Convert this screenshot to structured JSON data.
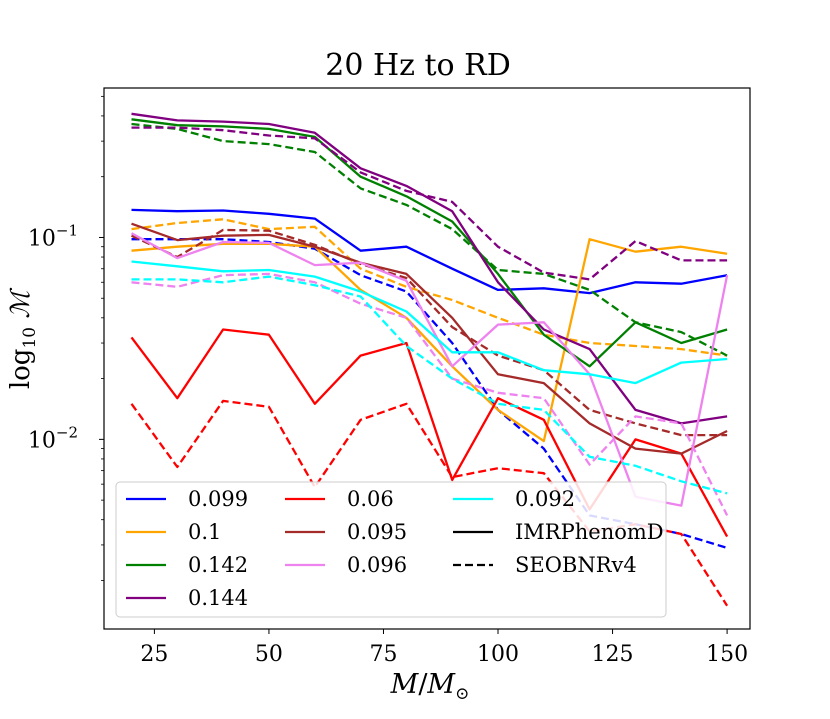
{
  "chart_data": {
    "type": "line",
    "title": "20 Hz to RD",
    "xlabel": "M/M_sun",
    "ylabel": "log10 M",
    "x": [
      20,
      30,
      40,
      50,
      60,
      70,
      80,
      90,
      100,
      110,
      120,
      130,
      140,
      150
    ],
    "xlim": [
      14,
      155
    ],
    "ylim": [
      0.00115,
      0.55
    ],
    "yscale": "log",
    "xticks": [
      25,
      50,
      75,
      100,
      125,
      150
    ],
    "xtick_labels": [
      "25",
      "50",
      "75",
      "100",
      "125",
      "150"
    ],
    "yticks": [
      0.01,
      0.1
    ],
    "ytick_labels": {
      "minus2": {
        "base": "10",
        "exp": "−2"
      },
      "minus1": {
        "base": "10",
        "exp": "−1"
      }
    },
    "legend": {
      "location": "lower-left",
      "columns": 3
    },
    "series": [
      {
        "name": "0.099",
        "color": "#0000ff",
        "style": "solid",
        "values": [
          0.137,
          0.135,
          0.136,
          0.131,
          0.124,
          0.086,
          0.09,
          0.07,
          0.055,
          0.056,
          0.053,
          0.06,
          0.059,
          0.065
        ]
      },
      {
        "name": "0.099",
        "color": "#0000ff",
        "style": "dashed",
        "values": [
          0.098,
          0.098,
          0.098,
          0.095,
          0.088,
          0.065,
          0.054,
          0.03,
          0.014,
          0.009,
          0.0042,
          0.0038,
          0.0034,
          0.0029
        ]
      },
      {
        "name": "0.1",
        "color": "#ffa500",
        "style": "solid",
        "values": [
          0.086,
          0.09,
          0.093,
          0.093,
          0.09,
          0.055,
          0.04,
          0.023,
          0.014,
          0.0098,
          0.098,
          0.085,
          0.09,
          0.083
        ]
      },
      {
        "name": "0.1",
        "color": "#ffa500",
        "style": "dashed",
        "values": [
          0.11,
          0.118,
          0.123,
          0.11,
          0.113,
          0.07,
          0.057,
          0.049,
          0.04,
          0.033,
          0.03,
          0.029,
          0.028,
          0.026
        ]
      },
      {
        "name": "0.142",
        "color": "#008000",
        "style": "solid",
        "values": [
          0.385,
          0.36,
          0.355,
          0.345,
          0.315,
          0.2,
          0.16,
          0.12,
          0.066,
          0.033,
          0.023,
          0.038,
          0.03,
          0.035
        ]
      },
      {
        "name": "0.142",
        "color": "#008000",
        "style": "dashed",
        "values": [
          0.365,
          0.345,
          0.3,
          0.29,
          0.265,
          0.175,
          0.145,
          0.11,
          0.069,
          0.066,
          0.055,
          0.038,
          0.034,
          0.026
        ]
      },
      {
        "name": "0.144",
        "color": "#800080",
        "style": "solid",
        "values": [
          0.41,
          0.38,
          0.375,
          0.365,
          0.33,
          0.22,
          0.18,
          0.135,
          0.06,
          0.035,
          0.028,
          0.014,
          0.012,
          0.013
        ]
      },
      {
        "name": "0.144",
        "color": "#800080",
        "style": "dashed",
        "values": [
          0.35,
          0.35,
          0.34,
          0.32,
          0.31,
          0.21,
          0.17,
          0.15,
          0.09,
          0.067,
          0.062,
          0.096,
          0.077,
          0.077
        ]
      },
      {
        "name": "0.06",
        "color": "#ff0000",
        "style": "solid",
        "values": [
          0.032,
          0.016,
          0.035,
          0.033,
          0.015,
          0.026,
          0.03,
          0.0063,
          0.016,
          0.0125,
          0.0045,
          0.01,
          0.0085,
          0.0033
        ]
      },
      {
        "name": "0.06",
        "color": "#ff0000",
        "style": "dashed",
        "values": [
          0.015,
          0.0073,
          0.0155,
          0.0145,
          0.0058,
          0.0125,
          0.015,
          0.0065,
          0.0072,
          0.0068,
          0.0035,
          0.0038,
          0.0034,
          0.0015
        ]
      },
      {
        "name": "0.095",
        "color": "#a52a2a",
        "style": "solid",
        "values": [
          0.117,
          0.097,
          0.102,
          0.103,
          0.09,
          0.075,
          0.066,
          0.04,
          0.021,
          0.019,
          0.012,
          0.009,
          0.0085,
          0.011
        ]
      },
      {
        "name": "0.095",
        "color": "#a52a2a",
        "style": "dashed",
        "values": [
          0.102,
          0.08,
          0.109,
          0.108,
          0.092,
          0.074,
          0.063,
          0.036,
          0.026,
          0.022,
          0.014,
          0.012,
          0.0105,
          0.0105
        ]
      },
      {
        "name": "0.096",
        "color": "#ee82ee",
        "style": "solid",
        "values": [
          0.105,
          0.079,
          0.095,
          0.094,
          0.073,
          0.075,
          0.061,
          0.023,
          0.037,
          0.038,
          0.021,
          0.0052,
          0.0047,
          0.065
        ]
      },
      {
        "name": "0.096",
        "color": "#ee82ee",
        "style": "dashed",
        "values": [
          0.06,
          0.057,
          0.065,
          0.066,
          0.06,
          0.047,
          0.04,
          0.02,
          0.017,
          0.016,
          0.0075,
          0.013,
          0.012,
          0.0042
        ]
      },
      {
        "name": "0.092",
        "color": "#00ffff",
        "style": "solid",
        "values": [
          0.076,
          0.072,
          0.068,
          0.069,
          0.064,
          0.054,
          0.043,
          0.027,
          0.027,
          0.022,
          0.021,
          0.019,
          0.024,
          0.025
        ]
      },
      {
        "name": "0.092",
        "color": "#00ffff",
        "style": "dashed",
        "values": [
          0.062,
          0.062,
          0.06,
          0.064,
          0.058,
          0.051,
          0.029,
          0.02,
          0.015,
          0.014,
          0.0082,
          0.0074,
          0.0062,
          0.0054
        ]
      }
    ],
    "legend_entries": [
      {
        "label": "0.099",
        "color": "#0000ff",
        "style": "solid"
      },
      {
        "label": "0.1",
        "color": "#ffa500",
        "style": "solid"
      },
      {
        "label": "0.142",
        "color": "#008000",
        "style": "solid"
      },
      {
        "label": "0.144",
        "color": "#800080",
        "style": "solid"
      },
      {
        "label": "0.06",
        "color": "#ff0000",
        "style": "solid"
      },
      {
        "label": "0.095",
        "color": "#a52a2a",
        "style": "solid"
      },
      {
        "label": "0.096",
        "color": "#ee82ee",
        "style": "solid"
      },
      {
        "label": "0.092",
        "color": "#00ffff",
        "style": "solid"
      },
      {
        "label": "IMRPhenomD",
        "color": "#000000",
        "style": "solid"
      },
      {
        "label": "SEOBNRv4",
        "color": "#000000",
        "style": "dashed"
      }
    ]
  }
}
